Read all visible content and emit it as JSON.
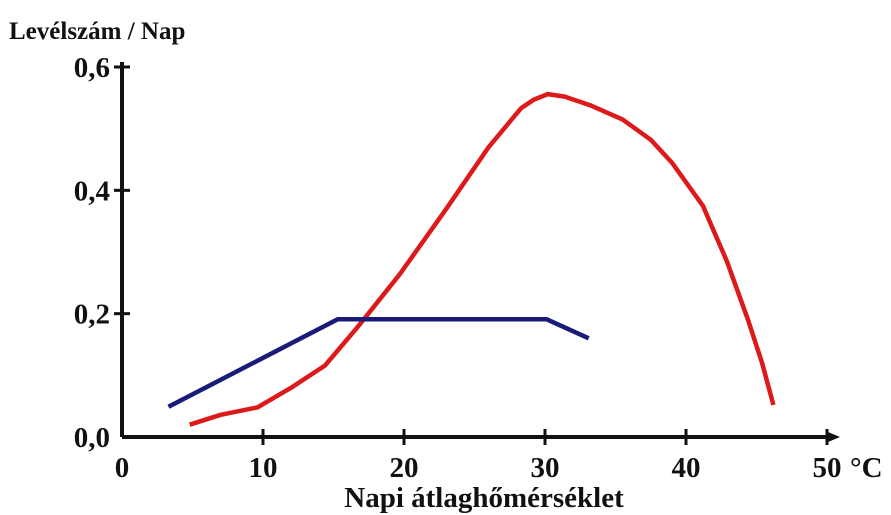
{
  "chart_data": {
    "type": "line",
    "ylabel": "Levélszám / Nap",
    "xlabel": "Napi átlaghőmérséklet",
    "x_unit": "°C",
    "xlim": [
      0,
      50
    ],
    "ylim": [
      0,
      0.6
    ],
    "x_ticks": [
      0,
      10,
      20,
      30,
      40,
      50
    ],
    "x_tick_labels": [
      "0",
      "10",
      "20",
      "30",
      "40",
      "50"
    ],
    "y_ticks": [
      0,
      0.2,
      0.4,
      0.6
    ],
    "y_tick_labels": [
      "0,0",
      "0,2",
      "0,4",
      "0,6"
    ],
    "grid": false,
    "legend": false,
    "series": [
      {
        "color": "#dd1a1a",
        "points": [
          [
            4.8,
            0.02
          ],
          [
            7,
            0.036
          ],
          [
            9.6,
            0.048
          ],
          [
            12,
            0.08
          ],
          [
            14.4,
            0.116
          ],
          [
            16.7,
            0.178
          ],
          [
            19.7,
            0.264
          ],
          [
            23,
            0.37
          ],
          [
            26,
            0.47
          ],
          [
            28.3,
            0.533
          ],
          [
            29.2,
            0.547
          ],
          [
            30.2,
            0.556
          ],
          [
            31.4,
            0.552
          ],
          [
            33.2,
            0.538
          ],
          [
            35.5,
            0.515
          ],
          [
            37.5,
            0.482
          ],
          [
            39,
            0.445
          ],
          [
            41.2,
            0.375
          ],
          [
            42.9,
            0.285
          ],
          [
            44.4,
            0.19
          ],
          [
            45.4,
            0.12
          ],
          [
            46.2,
            0.052
          ]
        ]
      },
      {
        "color": "#1a1a78",
        "points": [
          [
            3.3,
            0.049
          ],
          [
            15.3,
            0.191
          ],
          [
            30.1,
            0.191
          ],
          [
            33.1,
            0.16
          ]
        ]
      }
    ]
  }
}
